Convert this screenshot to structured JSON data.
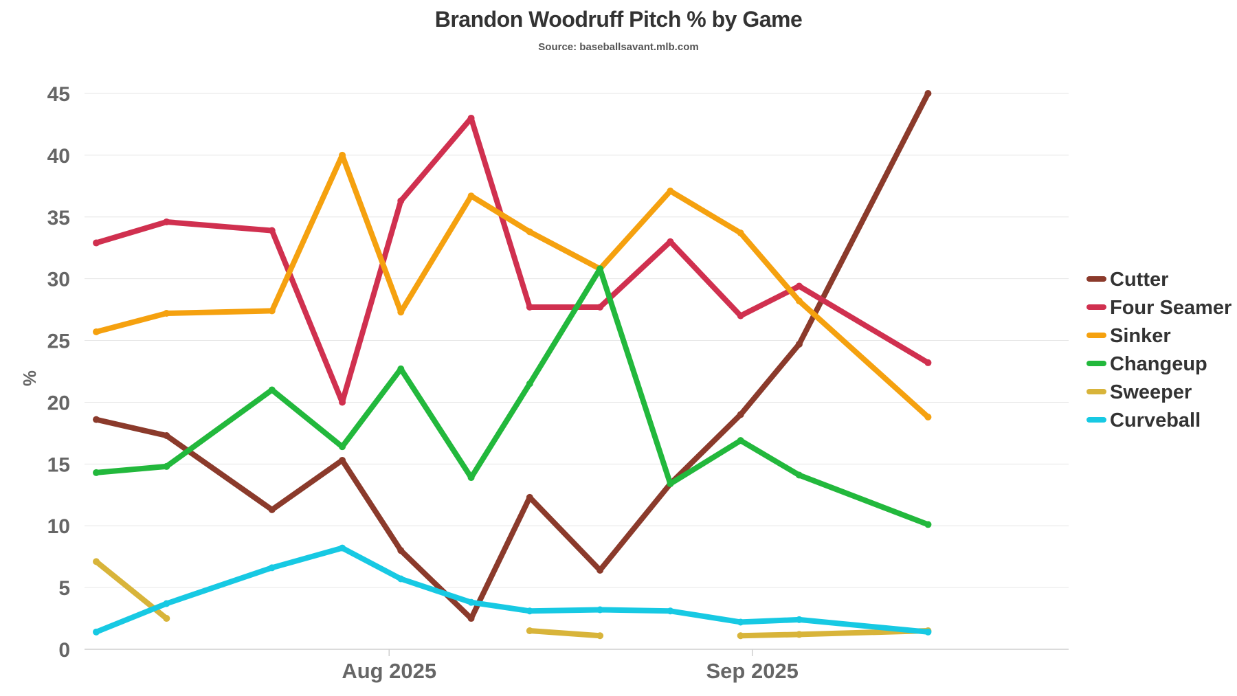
{
  "chart_data": {
    "type": "line",
    "title": "Brandon Woodruff Pitch % by Game",
    "subtitle": "Source: baseballsavant.mlb.com",
    "ylabel": "%",
    "ylim": [
      0,
      45
    ],
    "yticks": [
      0,
      5,
      10,
      15,
      20,
      25,
      30,
      35,
      40,
      45
    ],
    "xlim": [
      "2025-07-06",
      "2025-09-28"
    ],
    "xticks": [
      {
        "date": "2025-08-01",
        "label": "Aug 2025"
      },
      {
        "date": "2025-09-01",
        "label": "Sep 2025"
      }
    ],
    "grid": true,
    "legend_position": "right",
    "x": [
      "2025-07-07",
      "2025-07-13",
      "2025-07-22",
      "2025-07-28",
      "2025-08-02",
      "2025-08-08",
      "2025-08-13",
      "2025-08-19",
      "2025-08-25",
      "2025-08-31",
      "2025-09-05",
      "2025-09-16"
    ],
    "series": [
      {
        "name": "Cutter",
        "color": "#8B3A2B",
        "values": [
          18.6,
          17.3,
          11.3,
          15.3,
          8.0,
          2.5,
          12.3,
          6.4,
          13.4,
          19.0,
          24.7,
          45.0
        ]
      },
      {
        "name": "Four Seamer",
        "color": "#D0304F",
        "values": [
          32.9,
          34.6,
          33.9,
          20.0,
          36.3,
          43.0,
          27.7,
          27.7,
          33.0,
          27.0,
          29.4,
          23.2
        ]
      },
      {
        "name": "Sinker",
        "color": "#F5A10F",
        "values": [
          25.7,
          27.2,
          27.4,
          40.0,
          27.3,
          36.7,
          33.8,
          30.8,
          37.1,
          33.7,
          28.2,
          18.8
        ]
      },
      {
        "name": "Changeup",
        "color": "#22B83C",
        "values": [
          14.3,
          14.8,
          21.0,
          16.4,
          22.7,
          13.9,
          21.5,
          30.8,
          13.4,
          16.9,
          14.1,
          10.1
        ]
      },
      {
        "name": "Sweeper",
        "color": "#D8B43A",
        "values": [
          7.1,
          2.5,
          null,
          null,
          null,
          null,
          1.5,
          1.1,
          null,
          1.1,
          1.2,
          1.5
        ]
      },
      {
        "name": "Curveball",
        "color": "#17C9E3",
        "values": [
          1.4,
          3.7,
          6.6,
          8.2,
          5.7,
          3.8,
          3.1,
          3.2,
          3.1,
          2.2,
          2.4,
          1.4
        ]
      }
    ]
  }
}
